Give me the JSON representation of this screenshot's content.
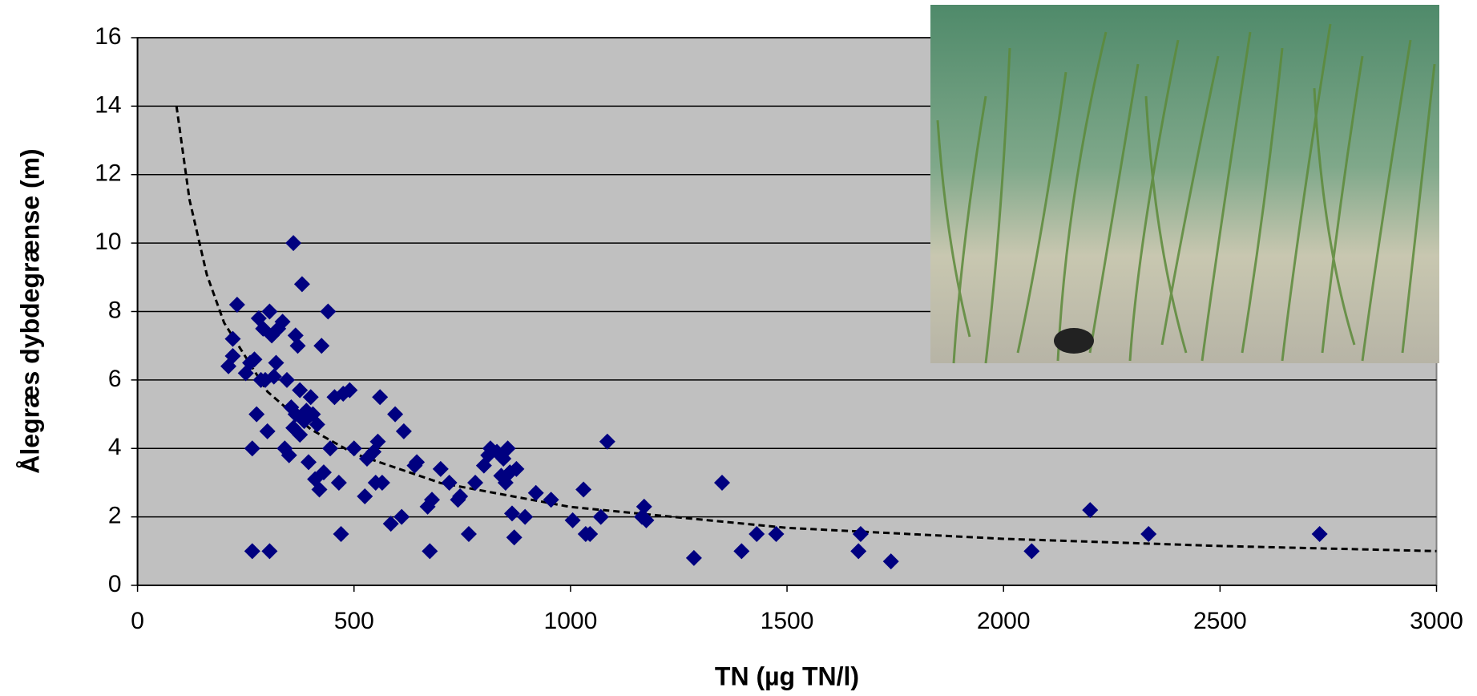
{
  "chart_data": {
    "type": "scatter",
    "x_label": "TN (µg TN/l)",
    "y_label": "Ålegræs dybdegrænse (m)",
    "x": [
      210,
      220,
      220,
      230,
      250,
      260,
      265,
      265,
      270,
      275,
      280,
      285,
      290,
      295,
      300,
      305,
      305,
      310,
      315,
      320,
      325,
      335,
      340,
      345,
      350,
      355,
      360,
      360,
      365,
      365,
      370,
      375,
      375,
      380,
      385,
      390,
      395,
      400,
      405,
      410,
      415,
      420,
      425,
      430,
      440,
      445,
      455,
      465,
      470,
      475,
      490,
      500,
      525,
      530,
      545,
      550,
      555,
      560,
      565,
      585,
      595,
      610,
      615,
      640,
      645,
      670,
      675,
      680,
      700,
      720,
      740,
      745,
      765,
      780,
      800,
      810,
      815,
      830,
      840,
      845,
      850,
      855,
      860,
      865,
      870,
      875,
      895,
      920,
      955,
      1005,
      1030,
      1035,
      1045,
      1070,
      1085,
      1165,
      1170,
      1175,
      1285,
      1350,
      1395,
      1430,
      1475,
      1665,
      1670,
      1740,
      2065,
      2200,
      2335,
      2730
    ],
    "values": [
      6.4,
      6.7,
      7.2,
      8.2,
      6.2,
      6.5,
      1.0,
      4.0,
      6.6,
      5.0,
      7.8,
      6.0,
      7.5,
      6.0,
      4.5,
      1.0,
      8.0,
      7.3,
      6.1,
      6.5,
      7.5,
      7.7,
      4.0,
      6.0,
      3.8,
      5.2,
      4.6,
      10.0,
      7.3,
      5.0,
      7.0,
      4.4,
      5.7,
      8.8,
      4.8,
      5.1,
      3.6,
      5.5,
      5.0,
      3.1,
      4.7,
      2.8,
      7.0,
      3.3,
      8.0,
      4.0,
      5.5,
      3.0,
      1.5,
      5.6,
      5.7,
      4.0,
      2.6,
      3.7,
      3.9,
      3.0,
      4.2,
      5.5,
      3.0,
      1.8,
      5.0,
      2.0,
      4.5,
      3.5,
      3.6,
      2.3,
      1.0,
      2.5,
      3.4,
      3.0,
      2.5,
      2.6,
      1.5,
      3.0,
      3.5,
      3.8,
      4.0,
      3.9,
      3.2,
      3.7,
      3.0,
      4.0,
      3.3,
      2.1,
      1.4,
      3.4,
      2.0,
      2.7,
      2.5,
      1.9,
      2.8,
      1.5,
      1.5,
      2.0,
      4.2,
      2.0,
      2.3,
      1.9,
      0.8,
      3.0,
      1.0,
      1.5,
      1.5,
      1.0,
      1.5,
      0.7,
      1.0,
      2.2,
      1.5,
      1.5
    ],
    "color": "#000080",
    "trendline": {
      "x": [
        90,
        120,
        160,
        200,
        300,
        400,
        500,
        700,
        1000,
        1500,
        2000,
        2500,
        3000
      ],
      "values": [
        14,
        11.27,
        9.08,
        7.67,
        5.66,
        4.56,
        3.85,
        2.99,
        2.29,
        1.68,
        1.36,
        1.15,
        1.0
      ]
    },
    "xlim": [
      0,
      3000
    ],
    "xticks": [
      0,
      500,
      1000,
      1500,
      2000,
      2500,
      3000
    ],
    "ylim": [
      0,
      16
    ],
    "yticks": [
      0,
      2,
      4,
      6,
      8,
      10,
      12,
      14,
      16
    ],
    "grid": true
  }
}
